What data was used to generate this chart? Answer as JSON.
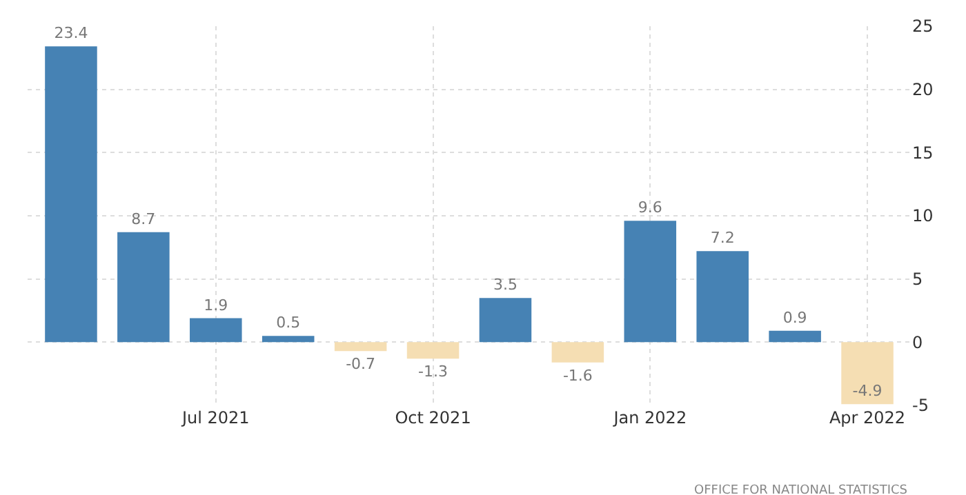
{
  "chart_data": {
    "type": "bar",
    "categories": [
      null,
      null,
      "Jul 2021",
      null,
      null,
      "Oct 2021",
      null,
      null,
      "Jan 2022",
      null,
      null,
      "Apr 2022"
    ],
    "values": [
      23.4,
      8.7,
      1.9,
      0.5,
      -0.7,
      -1.3,
      3.5,
      -1.6,
      9.6,
      7.2,
      0.9,
      -4.9
    ],
    "colors": [
      "#4682b4",
      "#4682b4",
      "#4682b4",
      "#4682b4",
      "#f5deb3",
      "#f5deb3",
      "#4682b4",
      "#f5deb3",
      "#4682b4",
      "#4682b4",
      "#4682b4",
      "#f5deb3"
    ],
    "ylim": [
      -5,
      25
    ],
    "yticks": [
      -5,
      0,
      5,
      10,
      15,
      20,
      25
    ],
    "grid": true,
    "data_labels": true,
    "legend": false,
    "annotations": [
      "OFFICE FOR NATIONAL STATISTICS"
    ]
  }
}
